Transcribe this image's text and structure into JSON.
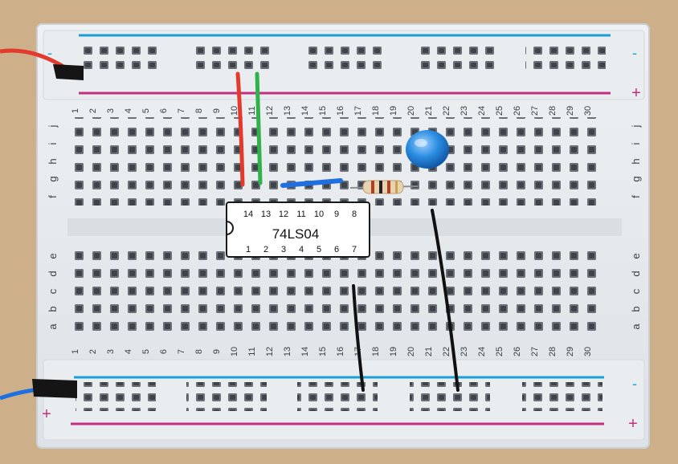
{
  "photo": {
    "subject": "breadboard-with-74ls04",
    "colors": {
      "table": "#cdb08a",
      "board": "#e6eaed",
      "hole": "#6b7078",
      "rail_blue": "#1aa0d8",
      "rail_red": "#c0307e",
      "wire_red": "#e23a2c",
      "wire_green": "#2fb24a",
      "wire_blue": "#1f6fe0",
      "wire_black": "#111111",
      "led": "#2a8de0",
      "chip": "#ffffff"
    }
  },
  "board": {
    "column_numbers": [
      "1",
      "2",
      "3",
      "4",
      "5",
      "6",
      "7",
      "8",
      "9",
      "10",
      "11",
      "12",
      "13",
      "14",
      "15",
      "16",
      "17",
      "18",
      "19",
      "20",
      "21",
      "22",
      "23",
      "24",
      "25",
      "26",
      "27",
      "28",
      "29",
      "30"
    ],
    "top_row_letters": [
      "j",
      "i",
      "h",
      "g",
      "f"
    ],
    "bottom_row_letters": [
      "e",
      "d",
      "c",
      "b",
      "a"
    ],
    "rail_minus": "-",
    "rail_plus": "+"
  },
  "chip": {
    "label": "74LS04",
    "top_pins": [
      "14",
      "13",
      "12",
      "11",
      "10",
      "9",
      "8"
    ],
    "bottom_pins": [
      "1",
      "2",
      "3",
      "4",
      "5",
      "6",
      "7"
    ]
  }
}
